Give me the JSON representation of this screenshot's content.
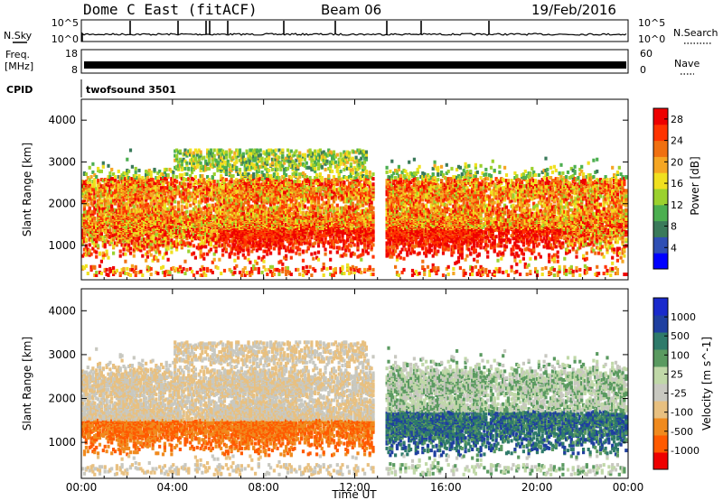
{
  "header": {
    "station": "Dome C East (fitACF)",
    "beam": "Beam 06",
    "date": "19/Feb/2016"
  },
  "summary": {
    "nsky_label": "N.Sky",
    "nsearch_label": "N.Search",
    "freq_label": "Freq.",
    "freq_unit": "[MHz]",
    "nave_label": "Nave",
    "cpid_label": "CPID",
    "cpid_value": "twofsound 3501",
    "noise_ticks": [
      "10^5",
      "10^0"
    ],
    "freq_ticks": [
      "18",
      "8"
    ],
    "nave_ticks": [
      "60",
      "0"
    ]
  },
  "colors": {
    "power": [
      "#0000ff",
      "#2f4fb4",
      "#3a7a5a",
      "#4caf50",
      "#9bd12e",
      "#f0e020",
      "#f5a623",
      "#f07010",
      "#ff3300",
      "#ee0000"
    ],
    "velocity": [
      "#ee0000",
      "#ff5a00",
      "#f08a1e",
      "#e8c080",
      "#c8c8c0",
      "#c0d8a8",
      "#5a9a60",
      "#2e7a6a",
      "#1f3fa0",
      "#1a2acc"
    ]
  },
  "chart_data": [
    {
      "type": "heatmap",
      "title": "Power",
      "ylabel": "Slant Range [km]",
      "xlabel": "",
      "x_ticks": [
        "00:00",
        "04:00",
        "08:00",
        "12:00",
        "16:00",
        "20:00",
        "00:00"
      ],
      "xlim": [
        0,
        24
      ],
      "y_ticks": [
        "1000",
        "2000",
        "3000",
        "4000"
      ],
      "ylim": [
        180,
        4500
      ],
      "colorbar_label": "Power [dB]",
      "colorbar_ticks": [
        "4",
        "8",
        "12",
        "16",
        "20",
        "24",
        "28"
      ],
      "colorbar_range": [
        0,
        30
      ],
      "data_gap_hours": [
        12.8,
        13.3
      ]
    },
    {
      "type": "heatmap",
      "title": "Velocity",
      "ylabel": "Slant Range [km]",
      "xlabel": "Time UT",
      "x_ticks": [
        "00:00",
        "04:00",
        "08:00",
        "12:00",
        "16:00",
        "20:00",
        "00:00"
      ],
      "xlim": [
        0,
        24
      ],
      "y_ticks": [
        "1000",
        "2000",
        "3000",
        "4000"
      ],
      "ylim": [
        180,
        4500
      ],
      "colorbar_label": "Velocity [m s^-1]",
      "colorbar_ticks": [
        "1000",
        "500",
        "100",
        "25",
        "-25",
        "-100",
        "-500",
        "-1000"
      ],
      "data_gap_hours": [
        12.8,
        13.3
      ]
    }
  ]
}
